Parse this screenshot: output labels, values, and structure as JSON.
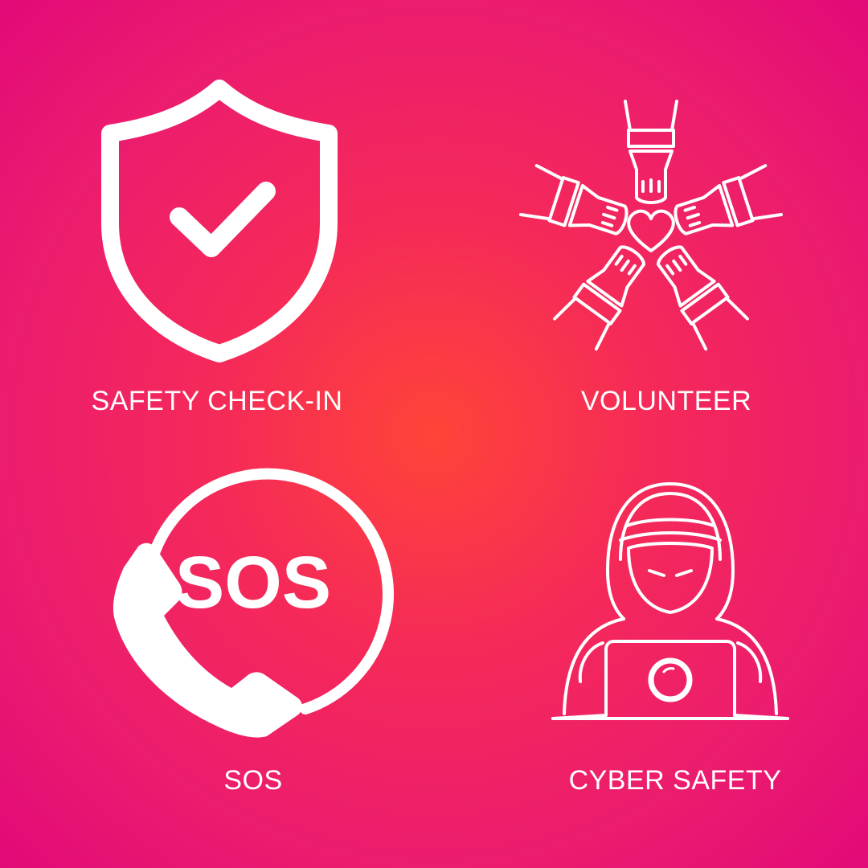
{
  "colors": {
    "background_center": "#ff4438",
    "background_edge": "#e20a78",
    "foreground": "#ffffff"
  },
  "tiles": [
    {
      "label": "SAFETY CHECK-IN",
      "icon": "shield-check-icon"
    },
    {
      "label": "VOLUNTEER",
      "icon": "hands-heart-icon"
    },
    {
      "label": "SOS",
      "icon": "sos-phone-icon",
      "icon_text": "SOS"
    },
    {
      "label": "CYBER SAFETY",
      "icon": "hacker-laptop-icon"
    }
  ]
}
